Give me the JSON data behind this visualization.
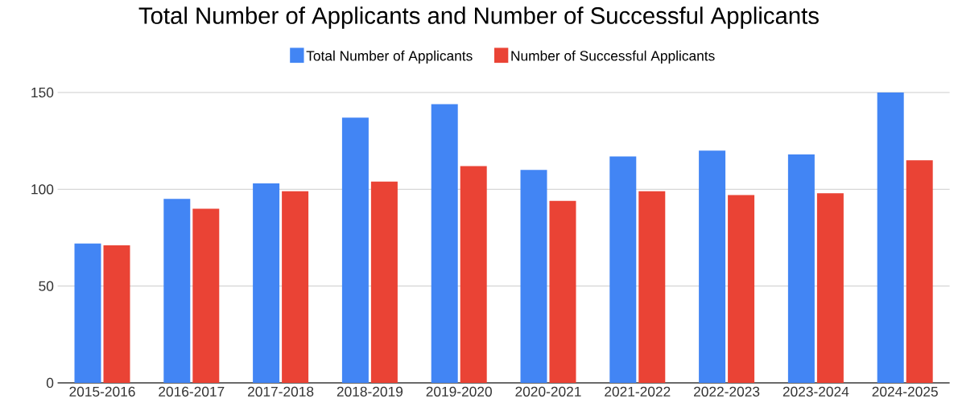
{
  "chart_data": {
    "type": "bar",
    "title": "Total Number of Applicants and Number of Successful Applicants",
    "categories": [
      "2015-2016",
      "2016-2017",
      "2017-2018",
      "2018-2019",
      "2019-2020",
      "2020-2021",
      "2021-2022",
      "2022-2023",
      "2023-2024",
      "2024-2025"
    ],
    "series": [
      {
        "name": "Total Number of Applicants",
        "color": "#4285f4",
        "values": [
          72,
          95,
          103,
          137,
          144,
          110,
          117,
          120,
          118,
          150
        ]
      },
      {
        "name": "Number of Successful Applicants",
        "color": "#ea4335",
        "values": [
          71,
          90,
          99,
          104,
          112,
          94,
          99,
          97,
          98,
          115
        ]
      }
    ],
    "ylim": [
      0,
      150
    ],
    "yticks": [
      0,
      50,
      100,
      150
    ],
    "grid": "y",
    "legend": "top"
  }
}
